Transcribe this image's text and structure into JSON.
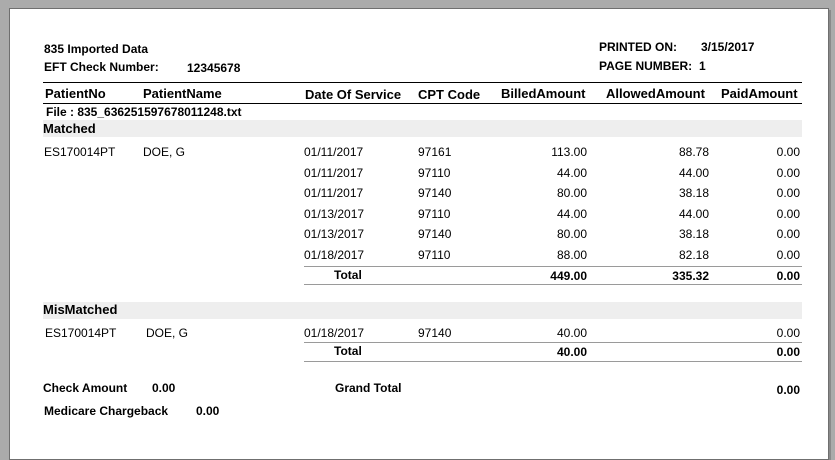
{
  "header": {
    "title": "835 Imported Data",
    "eft_label": "EFT Check Number:",
    "eft_value": "12345678",
    "printed_label": "PRINTED ON:",
    "printed_value": "3/15/2017",
    "page_label": "PAGE NUMBER:",
    "page_value": "1"
  },
  "columns": {
    "patient_no": "PatientNo",
    "patient_name": "PatientName",
    "date_of_service": "Date Of Service",
    "cpt_code": "CPT Code",
    "billed": "BilledAmount",
    "allowed": "AllowedAmount",
    "paid": "PaidAmount"
  },
  "file_line": "File : 835_636251597678011248.txt",
  "matched": {
    "label": "Matched",
    "patient_no": "ES170014PT",
    "patient_name": "DOE, G",
    "rows": [
      {
        "date": "01/11/2017",
        "cpt": "97161",
        "billed": "113.00",
        "allowed": "88.78",
        "paid": "0.00"
      },
      {
        "date": "01/11/2017",
        "cpt": "97110",
        "billed": "44.00",
        "allowed": "44.00",
        "paid": "0.00"
      },
      {
        "date": "01/11/2017",
        "cpt": "97140",
        "billed": "80.00",
        "allowed": "38.18",
        "paid": "0.00"
      },
      {
        "date": "01/13/2017",
        "cpt": "97110",
        "billed": "44.00",
        "allowed": "44.00",
        "paid": "0.00"
      },
      {
        "date": "01/13/2017",
        "cpt": "97140",
        "billed": "80.00",
        "allowed": "38.18",
        "paid": "0.00"
      },
      {
        "date": "01/18/2017",
        "cpt": "97110",
        "billed": "88.00",
        "allowed": "82.18",
        "paid": "0.00"
      }
    ],
    "total_label": "Total",
    "total_billed": "449.00",
    "total_allowed": "335.32",
    "total_paid": "0.00"
  },
  "mismatched": {
    "label": "MisMatched",
    "patient_no": "ES170014PT",
    "patient_name": "DOE, G",
    "rows": [
      {
        "date": "01/18/2017",
        "cpt": "97140",
        "billed": "40.00",
        "allowed": "",
        "paid": "0.00"
      }
    ],
    "total_label": "Total",
    "total_billed": "40.00",
    "total_paid": "0.00"
  },
  "footer": {
    "check_amount_label": "Check Amount",
    "check_amount_value": "0.00",
    "grand_total_label": "Grand Total",
    "grand_total_value": "0.00",
    "medicare_label": "Medicare Chargeback",
    "medicare_value": "0.00"
  }
}
